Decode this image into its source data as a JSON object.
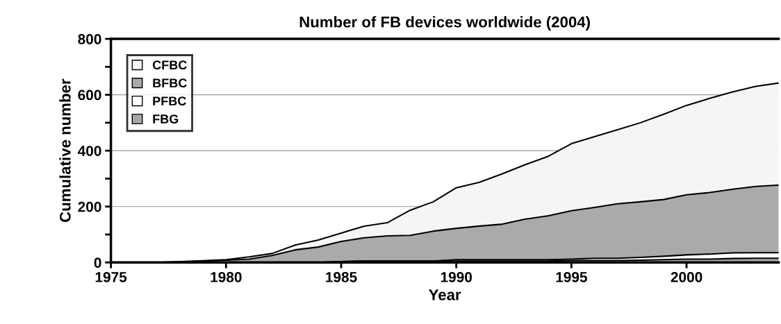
{
  "chart_data": {
    "type": "area",
    "stacked": true,
    "title": "Number of FB devices worldwide (2004)",
    "xlabel": "Year",
    "ylabel": "Cumulative number",
    "x": [
      1975,
      1976,
      1977,
      1978,
      1979,
      1980,
      1981,
      1982,
      1983,
      1984,
      1985,
      1986,
      1987,
      1988,
      1989,
      1990,
      1991,
      1992,
      1993,
      1994,
      1995,
      1996,
      1997,
      1998,
      1999,
      2000,
      2001,
      2002,
      2003,
      2004
    ],
    "series": [
      {
        "name": "FBG",
        "color": "#a8a8a8",
        "values": [
          0,
          0,
          0,
          0,
          0,
          0,
          0,
          0,
          0,
          0,
          3,
          5,
          5,
          5,
          5,
          5,
          5,
          5,
          5,
          5,
          7,
          7,
          7,
          8,
          10,
          12,
          12,
          14,
          15,
          15
        ]
      },
      {
        "name": "PFBC",
        "color": "#ffffff",
        "values": [
          0,
          0,
          0,
          0,
          0,
          0,
          0,
          0,
          0,
          0,
          0,
          0,
          0,
          0,
          0,
          5,
          5,
          5,
          5,
          5,
          5,
          8,
          8,
          10,
          12,
          15,
          18,
          20,
          20,
          20
        ]
      },
      {
        "name": "BFBC",
        "color": "#aaaaaa",
        "values": [
          0,
          0,
          0,
          2,
          5,
          8,
          12,
          25,
          45,
          55,
          72,
          83,
          90,
          92,
          107,
          112,
          120,
          127,
          145,
          157,
          173,
          182,
          195,
          199,
          203,
          215,
          220,
          228,
          237,
          242
        ]
      },
      {
        "name": "CFBC",
        "color": "#f5f5f5",
        "values": [
          0,
          0,
          0,
          1,
          1,
          2,
          8,
          7,
          17,
          25,
          30,
          42,
          47,
          90,
          105,
          145,
          157,
          180,
          195,
          213,
          240,
          253,
          265,
          283,
          305,
          320,
          337,
          348,
          358,
          365
        ]
      }
    ],
    "xlim": [
      1975,
      2004
    ],
    "xticks": [
      1975,
      1980,
      1985,
      1990,
      1995,
      2000
    ],
    "ylim": [
      0,
      800
    ],
    "yticks": [
      0,
      {
        "value": 100,
        "label": null
      },
      200,
      {
        "value": 300,
        "label": null
      },
      400,
      {
        "value": 500,
        "label": null
      },
      600,
      {
        "value": 700,
        "label": null
      },
      800
    ],
    "grid": "y",
    "legend": "top left"
  }
}
